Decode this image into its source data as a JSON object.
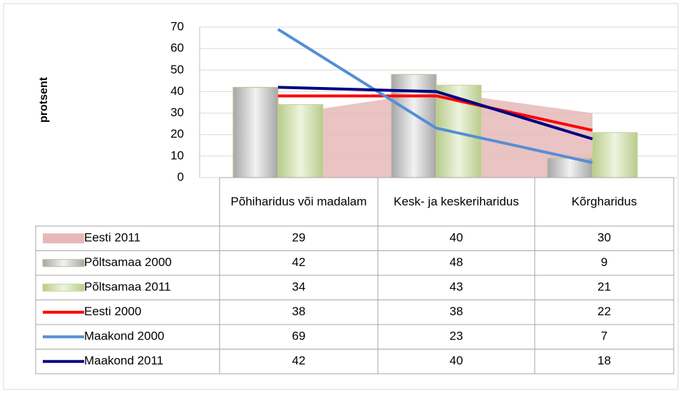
{
  "chart_data": {
    "type": "combo",
    "y_label": "protsent",
    "categories": [
      "Põhiharidus või madalam",
      "Kesk- ja keskeriharidus",
      "Kõrgharidus"
    ],
    "series": [
      {
        "name": "Eesti 2011",
        "type": "area",
        "color": "#e6b9b8",
        "values": [
          29,
          40,
          30
        ]
      },
      {
        "name": "Põltsamaa 2000",
        "type": "bar",
        "color": "#bfbfbf",
        "values": [
          42,
          48,
          9
        ]
      },
      {
        "name": "Põltsamaa 2011",
        "type": "bar",
        "color": "#d7e4bd",
        "values": [
          34,
          43,
          21
        ]
      },
      {
        "name": "Eesti 2000",
        "type": "line",
        "color": "#ff0000",
        "values": [
          38,
          38,
          22
        ]
      },
      {
        "name": "Maakond 2000",
        "type": "line",
        "color": "#558ed5",
        "values": [
          69,
          23,
          7
        ]
      },
      {
        "name": "Maakond 2011",
        "type": "line",
        "color": "#000080",
        "values": [
          42,
          40,
          18
        ]
      }
    ],
    "ylim": [
      0,
      70
    ],
    "yticks": [
      0,
      10,
      20,
      30,
      40,
      50,
      60,
      70
    ],
    "grid": true
  }
}
